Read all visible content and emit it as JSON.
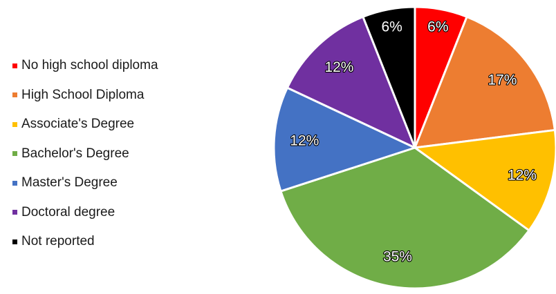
{
  "chart_data": {
    "type": "pie",
    "legend_position": "left",
    "start_angle_deg": 0,
    "direction": "clockwise",
    "slices": [
      {
        "label": "No high school diploma",
        "value": 6,
        "display": "6%",
        "color": "#ff0000"
      },
      {
        "label": "High School Diploma",
        "value": 17,
        "display": "17%",
        "color": "#ed7d31"
      },
      {
        "label": "Associate's Degree",
        "value": 12,
        "display": "12%",
        "color": "#ffc000"
      },
      {
        "label": "Bachelor's Degree",
        "value": 35,
        "display": "35%",
        "color": "#70ad47"
      },
      {
        "label": "Master's Degree",
        "value": 12,
        "display": "12%",
        "color": "#4472c4"
      },
      {
        "label": "Doctoral degree",
        "value": 12,
        "display": "12%",
        "color": "#7030a0"
      },
      {
        "label": "Not reported",
        "value": 6,
        "display": "6%",
        "color": "#000000"
      }
    ]
  }
}
